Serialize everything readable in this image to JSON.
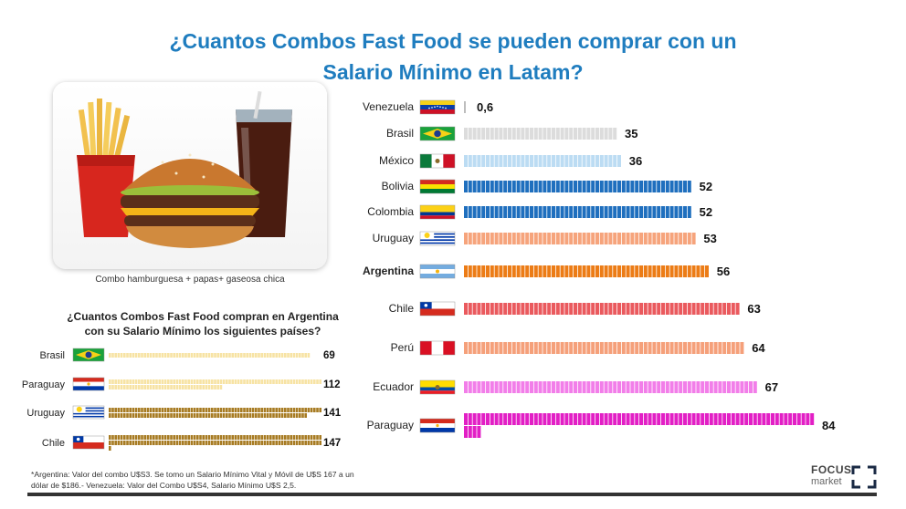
{
  "header": {
    "title_line1": "¿Cuantos Combos Fast Food se pueden comprar con un",
    "title_line2": "Salario Mínimo en Latam?"
  },
  "photo": {
    "caption": "Combo hamburguesa + papas+ gaseosa chica"
  },
  "colors": {
    "title": "#1f7dbf",
    "venezuela": "#bdbdbd",
    "brasil": "#dcdcdc",
    "mexico": "#bcdcf3",
    "bolivia": "#1f6fbe",
    "colombia": "#1f6fbe",
    "uruguay": "#f6a47c",
    "argentina": "#ec7c16",
    "chile": "#ea5a5e",
    "peru": "#f5a07a",
    "ecuador": "#f27ee9",
    "paraguay": "#e21fc5",
    "sub_light": "#f7e3a4",
    "sub_dark": "#a77b22"
  },
  "chart_data": [
    {
      "type": "bar",
      "title": "¿Cuantos Combos Fast Food se pueden comprar con un Salario Mínimo en Latam?",
      "categories": [
        "Venezuela",
        "Brasil",
        "México",
        "Bolivia",
        "Colombia",
        "Uruguay",
        "Argentina",
        "Chile",
        "Perú",
        "Ecuador",
        "Paraguay"
      ],
      "values": [
        0.6,
        35,
        36,
        52,
        52,
        53,
        56,
        63,
        64,
        67,
        84
      ],
      "value_labels": [
        "0,6",
        "35",
        "36",
        "52",
        "52",
        "53",
        "56",
        "63",
        "64",
        "67",
        "84"
      ],
      "highlight": "Argentina",
      "flags": [
        "flag-venezuela",
        "flag-brasil",
        "flag-mexico",
        "flag-bolivia",
        "flag-colombia",
        "flag-uruguay",
        "flag-argentina",
        "flag-chile",
        "flag-peru",
        "flag-ecuador",
        "flag-paraguay"
      ]
    },
    {
      "type": "bar",
      "title": "¿Cuantos Combos Fast Food compran en Argentina con su Salario Mínimo los siguientes países?",
      "title_line1": "¿Cuantos Combos Fast Food compran en Argentina",
      "title_line2": "con su Salario Mínimo los siguientes países?",
      "categories": [
        "Brasil",
        "Paraguay",
        "Uruguay",
        "Chile"
      ],
      "values": [
        69,
        112,
        141,
        147
      ],
      "value_labels": [
        "69",
        "112",
        "141",
        "147"
      ],
      "flags": [
        "flag-brasil",
        "flag-paraguay",
        "flag-uruguay",
        "flag-chile"
      ]
    }
  ],
  "footnote": {
    "line1": "*Argentina: Valor del combo U$S3. Se tomo un Salario Mínimo Vital y Móvil de U$S 167 a un",
    "line2": "dólar de $186.- Venezuela: Valor del Combo U$S4, Salario Mínimo U$S 2,5."
  },
  "brand": {
    "name": "FOCUS",
    "sub": "market"
  }
}
